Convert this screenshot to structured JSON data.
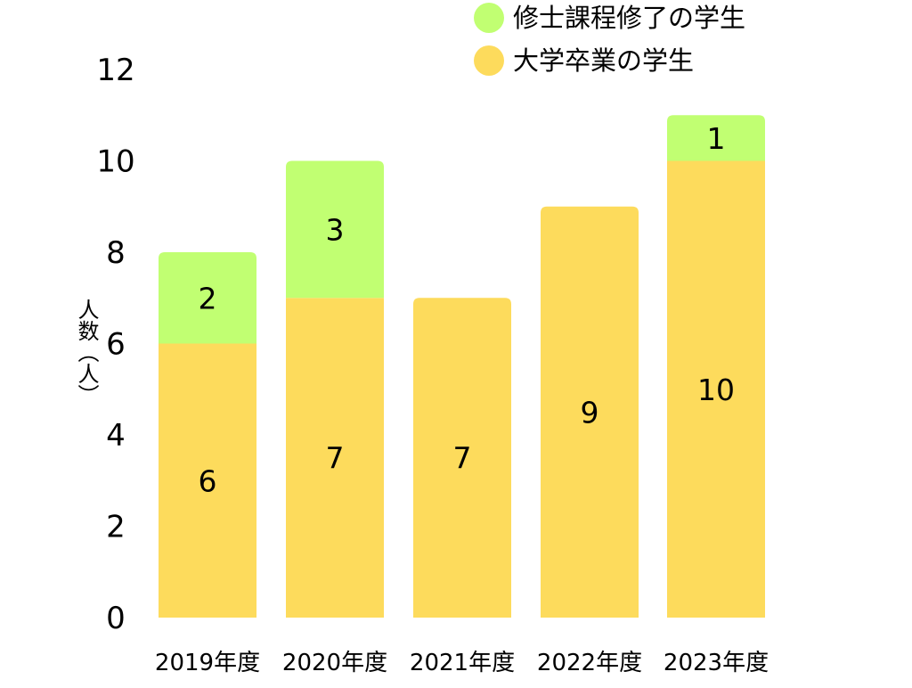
{
  "chart_data": {
    "type": "bar",
    "stacked": true,
    "categories": [
      "2019年度",
      "2020年度",
      "2021年度",
      "2022年度",
      "2023年度"
    ],
    "series": [
      {
        "name": "大学卒業の学生",
        "values": [
          6,
          7,
          7,
          9,
          10
        ],
        "color": "#FDDB5C"
      },
      {
        "name": "修士課程修了の学生",
        "values": [
          2,
          3,
          0,
          0,
          1
        ],
        "color": "#C1FF72"
      }
    ],
    "ylabel": "人数（人）",
    "ylim": [
      0,
      12
    ],
    "yticks": [
      0,
      2,
      4,
      6,
      8,
      10,
      12
    ],
    "grid": false,
    "legend": [
      {
        "label": "修士課程修了の学生",
        "color": "#C1FF72",
        "icon": "circle"
      },
      {
        "label": "大学卒業の学生",
        "color": "#FDDB5C",
        "icon": "circle"
      }
    ],
    "legend_position": "top-right"
  }
}
